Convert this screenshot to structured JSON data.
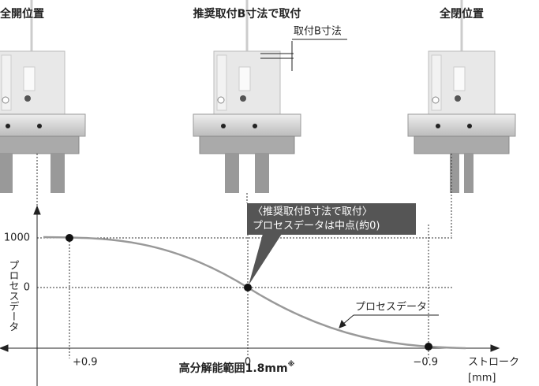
{
  "labels": {
    "open": "全開位置",
    "recommended": "推奨取付B寸法で取付",
    "closed": "全閉位置",
    "dimension": "取付B寸法"
  },
  "graph": {
    "y_ticks": [
      "1000",
      "0"
    ],
    "y_axis_label": "プロセスデータ",
    "x_ticks": [
      "+0.9",
      "0",
      "−0.9"
    ],
    "x_axis_label": "ストローク",
    "x_unit": "[mm]",
    "callout": [
      "〈推奨取付B寸法で取付〉",
      "プロセスデータは中点(約0)"
    ],
    "curve_label": "プロセスデータ",
    "range_label": "高分解能範囲1.8mm",
    "range_mark": "※"
  }
}
